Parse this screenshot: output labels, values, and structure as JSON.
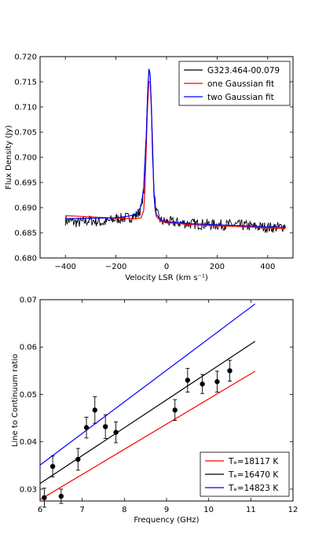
{
  "chart_data": [
    {
      "type": "line",
      "xlabel": "Velocity LSR (km s⁻¹)",
      "ylabel": "Flux Density (Jy)",
      "xlim": [
        -500,
        500
      ],
      "ylim": [
        0.68,
        0.72
      ],
      "xticks": [
        "−400",
        "−200",
        "0",
        "200",
        "400"
      ],
      "yticks": [
        "0.680",
        "0.685",
        "0.690",
        "0.695",
        "0.700",
        "0.705",
        "0.710",
        "0.715",
        "0.720"
      ],
      "legend": "top-right",
      "series": [
        {
          "name": "G323.464-00.079",
          "color": "#000000",
          "x": [
            -400,
            -350,
            -300,
            -250,
            -200,
            -150,
            -120,
            -110,
            -100,
            -90,
            -80,
            -75,
            -70,
            -65,
            -60,
            -55,
            -50,
            -40,
            -30,
            -20,
            0,
            50,
            100,
            150,
            200,
            250,
            300,
            350,
            400,
            450,
            470
          ],
          "y": [
            0.6875,
            0.687,
            0.6875,
            0.687,
            0.6878,
            0.688,
            0.6885,
            0.689,
            0.69,
            0.6935,
            0.705,
            0.713,
            0.7175,
            0.716,
            0.71,
            0.7,
            0.693,
            0.689,
            0.688,
            0.6873,
            0.6872,
            0.687,
            0.6868,
            0.6867,
            0.6866,
            0.6866,
            0.6865,
            0.6862,
            0.6861,
            0.6861,
            0.6865
          ]
        },
        {
          "name": "one Gaussian fit",
          "color": "#ff0000",
          "x": [
            -400,
            -200,
            -120,
            -100,
            -90,
            -85,
            -80,
            -75,
            -70,
            -65,
            -60,
            -55,
            -50,
            -45,
            -40,
            -30,
            -20,
            0,
            100,
            200,
            300,
            400,
            470
          ],
          "y": [
            0.6884,
            0.6879,
            0.6878,
            0.688,
            0.6895,
            0.694,
            0.702,
            0.71,
            0.715,
            0.715,
            0.71,
            0.702,
            0.693,
            0.6895,
            0.6882,
            0.6877,
            0.6873,
            0.687,
            0.6866,
            0.6864,
            0.6862,
            0.686,
            0.6858
          ]
        },
        {
          "name": "two Gaussian fit",
          "color": "#0000ff",
          "x": [
            -400,
            -200,
            -150,
            -120,
            -110,
            -100,
            -90,
            -80,
            -75,
            -70,
            -65,
            -60,
            -55,
            -50,
            -45,
            -40,
            -30,
            -20,
            0,
            100,
            200,
            300,
            400,
            470
          ],
          "y": [
            0.6878,
            0.688,
            0.6883,
            0.6888,
            0.6893,
            0.6905,
            0.694,
            0.704,
            0.712,
            0.7175,
            0.7165,
            0.71,
            0.701,
            0.6935,
            0.69,
            0.6887,
            0.688,
            0.6875,
            0.6872,
            0.6868,
            0.6866,
            0.6864,
            0.6862,
            0.6861
          ]
        }
      ]
    },
    {
      "type": "scatter",
      "xlabel": "Frequency (GHz)",
      "ylabel": "Line to Continuum ratio",
      "xlim": [
        6,
        12
      ],
      "ylim": [
        0.0275,
        0.07
      ],
      "xticks": [
        "6",
        "7",
        "8",
        "9",
        "10",
        "11",
        "12"
      ],
      "yticks": [
        "0.03",
        "0.04",
        "0.05",
        "0.06",
        "0.07"
      ],
      "legend": "bottom-right",
      "points": {
        "x": [
          6.1,
          6.3,
          6.5,
          6.9,
          7.1,
          7.3,
          7.55,
          7.8,
          9.2,
          9.5,
          9.85,
          10.2,
          10.5
        ],
        "y": [
          0.0282,
          0.0348,
          0.0285,
          0.0363,
          0.043,
          0.0467,
          0.0432,
          0.042,
          0.0467,
          0.053,
          0.0522,
          0.0527,
          0.055
        ],
        "err": [
          0.002,
          0.0022,
          0.0015,
          0.0023,
          0.0022,
          0.0028,
          0.0025,
          0.0022,
          0.0022,
          0.0025,
          0.002,
          0.0022,
          0.0022
        ]
      },
      "series": [
        {
          "name": "Tₑ=18117 K",
          "color": "#ff0000",
          "x": [
            6.0,
            11.1
          ],
          "y": [
            0.0278,
            0.0549
          ]
        },
        {
          "name": "Tₑ=16470 K",
          "color": "#000000",
          "x": [
            6.0,
            11.1
          ],
          "y": [
            0.0312,
            0.0612
          ]
        },
        {
          "name": "Tₑ=14823 K",
          "color": "#0000ff",
          "x": [
            6.0,
            11.1
          ],
          "y": [
            0.0351,
            0.0691
          ]
        }
      ]
    }
  ]
}
